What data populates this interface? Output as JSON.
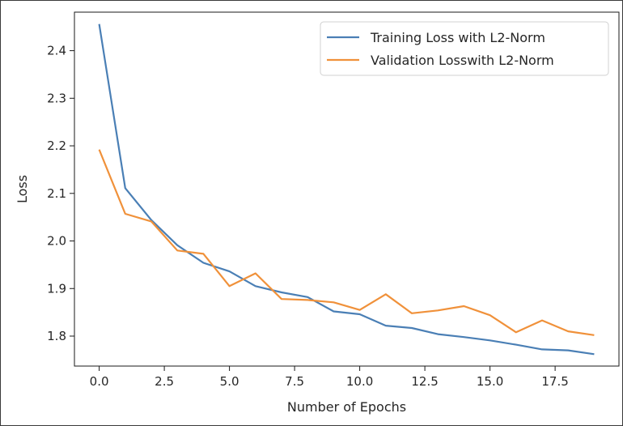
{
  "chart_data": {
    "type": "line",
    "title": "",
    "xlabel": "Number of Epochs",
    "ylabel": "Loss",
    "xlim": [
      -0.95,
      19.95
    ],
    "ylim": [
      1.737,
      2.481
    ],
    "x_ticks": [
      "0.0",
      "2.5",
      "5.0",
      "7.5",
      "10.0",
      "12.5",
      "15.0",
      "17.5"
    ],
    "x_tick_values": [
      0,
      2.5,
      5,
      7.5,
      10,
      12.5,
      15,
      17.5
    ],
    "y_ticks": [
      "1.8",
      "1.9",
      "2.0",
      "2.1",
      "2.2",
      "2.3",
      "2.4"
    ],
    "y_tick_values": [
      1.8,
      1.9,
      2.0,
      2.1,
      2.2,
      2.3,
      2.4
    ],
    "grid": false,
    "legend_position": "top-right",
    "x": [
      0,
      1,
      2,
      3,
      4,
      5,
      6,
      7,
      8,
      9,
      10,
      11,
      12,
      13,
      14,
      15,
      16,
      17,
      18,
      19
    ],
    "series": [
      {
        "name": "Training Loss with L2-Norm",
        "color": "#4a7fb5",
        "values": [
          2.456,
          2.111,
          2.044,
          1.991,
          1.954,
          1.936,
          1.905,
          1.892,
          1.882,
          1.852,
          1.846,
          1.822,
          1.817,
          1.804,
          1.798,
          1.791,
          1.782,
          1.772,
          1.77,
          1.762
        ]
      },
      {
        "name": "Validation Losswith L2-Norm",
        "color": "#f0913a",
        "values": [
          2.192,
          2.057,
          2.041,
          1.98,
          1.973,
          1.905,
          1.932,
          1.878,
          1.876,
          1.871,
          1.855,
          1.888,
          1.848,
          1.854,
          1.863,
          1.844,
          1.808,
          1.833,
          1.81,
          1.802
        ]
      }
    ]
  }
}
